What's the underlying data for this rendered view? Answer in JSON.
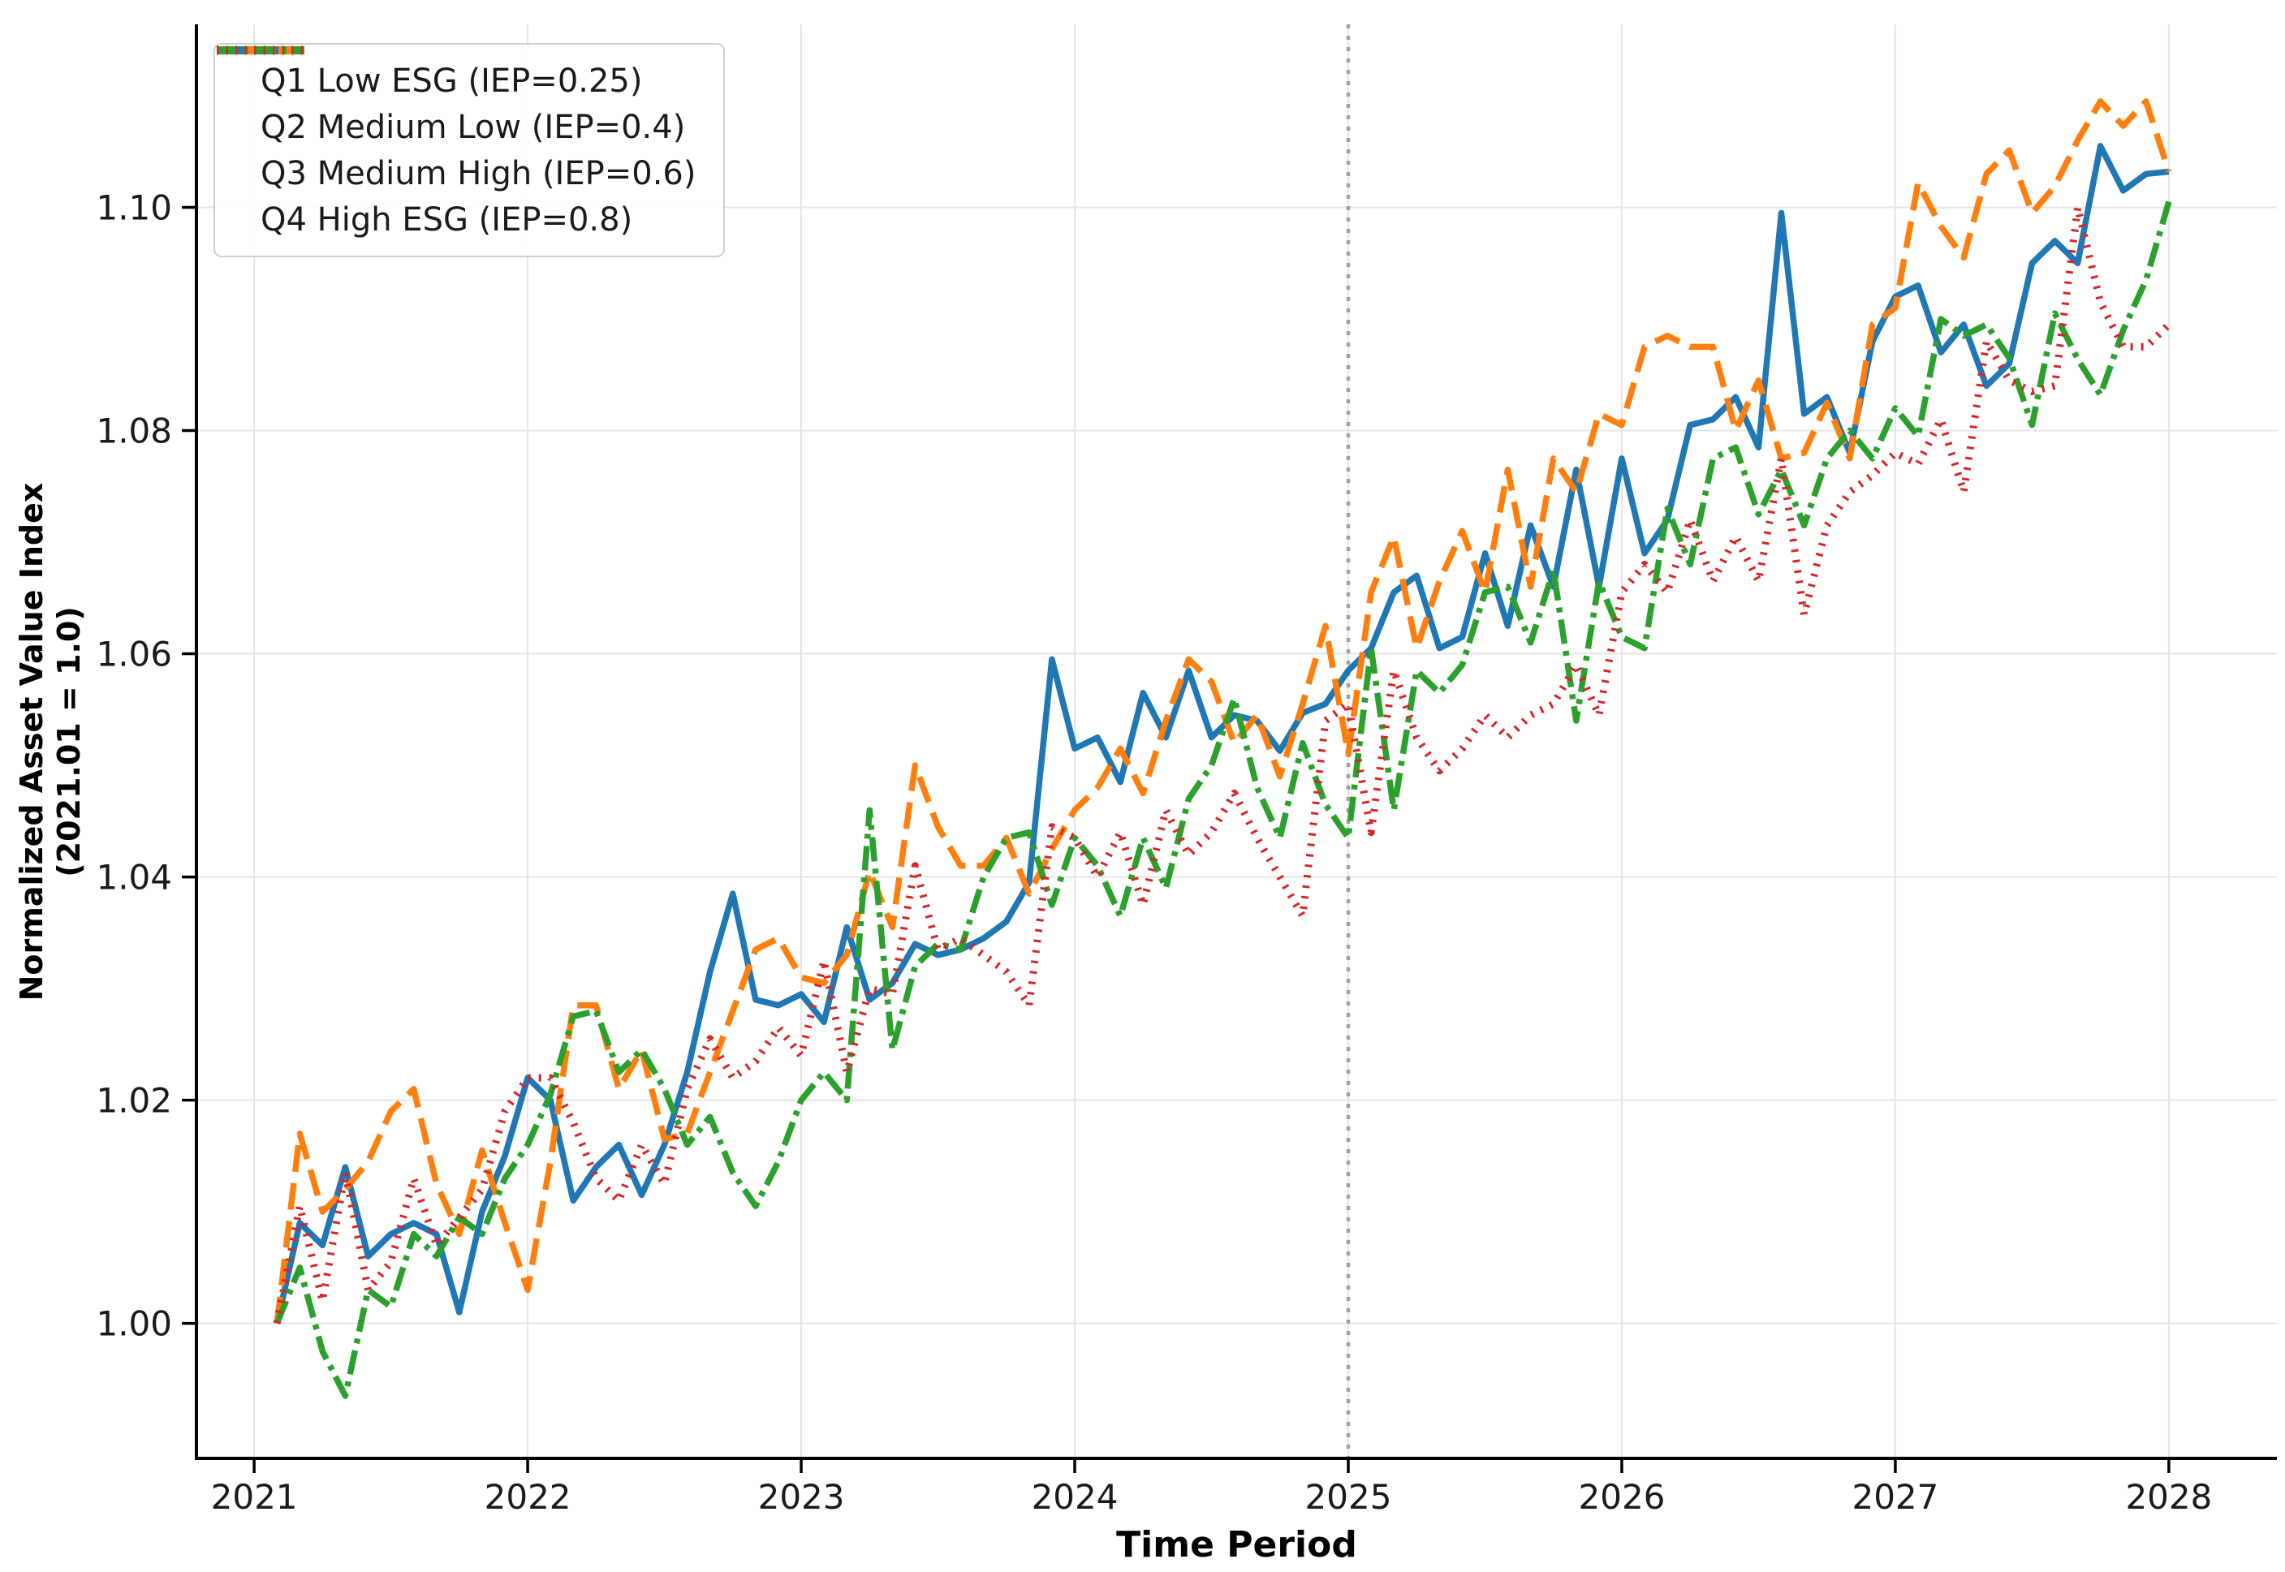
{
  "chart_data": {
    "type": "line",
    "title": "",
    "xlabel": "Time Period",
    "ylabel_line1": "Normalized Asset Value Index",
    "ylabel_line2": "(2021.01 = 1.0)",
    "x_unit": "decimal_year_monthly",
    "x_start": 2021.0833,
    "x_step": 0.0833,
    "n_points": 84,
    "xlim": [
      2020.789,
      2028.395
    ],
    "ylim": [
      0.9879,
      1.1164
    ],
    "x_ticks": [
      2021,
      2022,
      2023,
      2024,
      2025,
      2026,
      2027,
      2028
    ],
    "x_tick_labels": [
      "2021",
      "2022",
      "2023",
      "2024",
      "2025",
      "2026",
      "2027",
      "2028"
    ],
    "y_ticks": [
      1.0,
      1.02,
      1.04,
      1.06,
      1.08,
      1.1
    ],
    "y_tick_labels": [
      "1.00",
      "1.02",
      "1.04",
      "1.06",
      "1.08",
      "1.10"
    ],
    "grid": true,
    "grid_color": "#e5e5e5",
    "event_line_x": 2025,
    "event_line_color": "#a0a0a0",
    "legend_position": "upper left",
    "series": [
      {
        "name": "Q1 Low ESG (IEP=0.25)",
        "color": "#1f77b4",
        "style": "solid",
        "values": [
          1.0,
          1.009,
          1.007,
          1.014,
          1.006,
          1.008,
          1.009,
          1.008,
          1.001,
          1.01,
          1.015,
          1.022,
          1.02,
          1.011,
          1.014,
          1.016,
          1.0115,
          1.016,
          1.0225,
          1.0315,
          1.0385,
          1.029,
          1.0285,
          1.0295,
          1.027,
          1.0355,
          1.029,
          1.0305,
          1.034,
          1.033,
          1.0335,
          1.0345,
          1.036,
          1.0395,
          1.0595,
          1.0515,
          1.0525,
          1.0485,
          1.0565,
          1.0525,
          1.0585,
          1.0525,
          1.0545,
          1.054,
          1.0513,
          1.0547,
          1.0555,
          1.0585,
          1.0605,
          1.0655,
          1.067,
          1.0605,
          1.0615,
          1.069,
          1.0625,
          1.0715,
          1.066,
          1.0765,
          1.066,
          1.0775,
          1.069,
          1.072,
          1.0805,
          1.081,
          1.083,
          1.0785,
          1.0995,
          1.0815,
          1.083,
          1.078,
          1.088,
          1.092,
          1.093,
          1.087,
          1.0895,
          1.084,
          1.086,
          1.095,
          1.097,
          1.095,
          1.1055,
          1.1015,
          1.103,
          1.1032
        ]
      },
      {
        "name": "Q2 Medium Low (IEP=0.4)",
        "color": "#ff7f0e",
        "style": "dashed",
        "values": [
          1.0,
          1.017,
          1.01,
          1.012,
          1.0145,
          1.019,
          1.021,
          1.0125,
          1.008,
          1.0155,
          1.009,
          1.003,
          1.0145,
          1.0285,
          1.0285,
          1.021,
          1.0245,
          1.0165,
          1.017,
          1.0225,
          1.028,
          1.0335,
          1.0345,
          1.031,
          1.0305,
          1.033,
          1.0405,
          1.0355,
          1.05,
          1.0445,
          1.041,
          1.041,
          1.0435,
          1.0385,
          1.0425,
          1.046,
          1.048,
          1.0515,
          1.0475,
          1.054,
          1.0595,
          1.0575,
          1.052,
          1.0545,
          1.049,
          1.0555,
          1.0625,
          1.051,
          1.0655,
          1.0705,
          1.0605,
          1.0665,
          1.071,
          1.0655,
          1.0765,
          1.066,
          1.0775,
          1.0745,
          1.0815,
          1.0805,
          1.0875,
          1.0885,
          1.0875,
          1.0875,
          1.08,
          1.0845,
          1.0775,
          1.078,
          1.0825,
          1.0775,
          1.0895,
          1.091,
          1.1022,
          1.0983,
          1.0955,
          1.103,
          1.1051,
          1.0995,
          1.1019,
          1.106,
          1.1095,
          1.1073,
          1.1095,
          1.1032
        ]
      },
      {
        "name": "Q3 Medium High (IEP=0.6)",
        "color": "#2ca02c",
        "style": "dashdot",
        "values": [
          1.0,
          1.005,
          0.9975,
          0.9935,
          1.003,
          1.0015,
          1.008,
          1.006,
          1.0095,
          1.008,
          1.013,
          1.016,
          1.0205,
          1.0275,
          1.028,
          1.0225,
          1.0245,
          1.021,
          1.016,
          1.0185,
          1.0135,
          1.0105,
          1.0145,
          1.02,
          1.0225,
          1.02,
          1.046,
          1.0245,
          1.032,
          1.034,
          1.0335,
          1.04,
          1.0435,
          1.044,
          1.0375,
          1.0435,
          1.041,
          1.0365,
          1.0435,
          1.039,
          1.047,
          1.05,
          1.056,
          1.048,
          1.0435,
          1.052,
          1.0465,
          1.0435,
          1.0605,
          1.046,
          1.0585,
          1.0565,
          1.059,
          1.0655,
          1.066,
          1.061,
          1.0675,
          1.054,
          1.0665,
          1.0615,
          1.0605,
          1.073,
          1.068,
          1.0775,
          1.0785,
          1.0725,
          1.0765,
          1.0715,
          1.0775,
          1.08,
          1.0775,
          1.082,
          1.0795,
          1.09,
          1.0885,
          1.0895,
          1.0865,
          1.0805,
          1.0905,
          1.0864,
          1.0832,
          1.089,
          1.0935,
          1.1005
        ]
      },
      {
        "name": "Q4 High ESG (IEP=0.8)",
        "color": "#d62728",
        "style": "dotted",
        "values": [
          1.0,
          1.0105,
          1.002,
          1.0135,
          1.003,
          1.0055,
          1.013,
          1.007,
          1.0095,
          1.012,
          1.019,
          1.022,
          1.022,
          1.018,
          1.013,
          1.011,
          1.016,
          1.0125,
          1.021,
          1.0255,
          1.022,
          1.0235,
          1.0265,
          1.024,
          1.0325,
          1.0225,
          1.03,
          1.0295,
          1.041,
          1.0335,
          1.0345,
          1.033,
          1.0315,
          1.0285,
          1.0445,
          1.0435,
          1.04,
          1.044,
          1.0375,
          1.046,
          1.042,
          1.044,
          1.0475,
          1.0435,
          1.04,
          1.0365,
          1.054,
          1.0555,
          1.044,
          1.0585,
          1.0525,
          1.0495,
          1.0515,
          1.0545,
          1.0525,
          1.0545,
          1.0555,
          1.059,
          1.0545,
          1.0655,
          1.068,
          1.0655,
          1.072,
          1.0665,
          1.0705,
          1.0665,
          1.0775,
          1.0635,
          1.0715,
          1.0745,
          1.076,
          1.078,
          1.077,
          1.081,
          1.0745,
          1.088,
          1.0845,
          1.0835,
          1.084,
          1.1,
          1.0915,
          1.0875,
          1.0875,
          1.0895
        ]
      }
    ]
  }
}
